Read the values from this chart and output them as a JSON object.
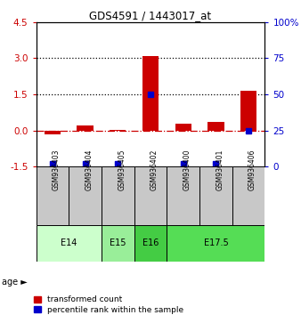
{
  "title": "GDS4591 / 1443017_at",
  "samples": [
    "GSM936403",
    "GSM936404",
    "GSM936405",
    "GSM936402",
    "GSM936400",
    "GSM936401",
    "GSM936406"
  ],
  "red_values": [
    -0.15,
    0.2,
    0.02,
    3.1,
    0.3,
    0.35,
    1.65
  ],
  "blue_values_pct": [
    2,
    2,
    2,
    50,
    2,
    2,
    25
  ],
  "age_groups": [
    {
      "label": "E14",
      "start": 0,
      "end": 2,
      "color": "#ccffcc"
    },
    {
      "label": "E15",
      "start": 2,
      "end": 3,
      "color": "#99ee99"
    },
    {
      "label": "E16",
      "start": 3,
      "end": 4,
      "color": "#44cc44"
    },
    {
      "label": "E17.5",
      "start": 4,
      "end": 7,
      "color": "#55dd55"
    }
  ],
  "ylim_left": [
    -1.5,
    4.5
  ],
  "ylim_right": [
    0,
    100
  ],
  "yticks_left": [
    -1.5,
    0.0,
    1.5,
    3.0,
    4.5
  ],
  "yticks_right": [
    0,
    25,
    50,
    75,
    100
  ],
  "hlines_dotted": [
    1.5,
    3.0
  ],
  "red_color": "#cc0000",
  "blue_color": "#0000cc",
  "zero_line_color": "#cc0000",
  "bg_color": "#ffffff",
  "legend_red": "transformed count",
  "legend_blue": "percentile rank within the sample",
  "gray_box": "#c8c8c8"
}
